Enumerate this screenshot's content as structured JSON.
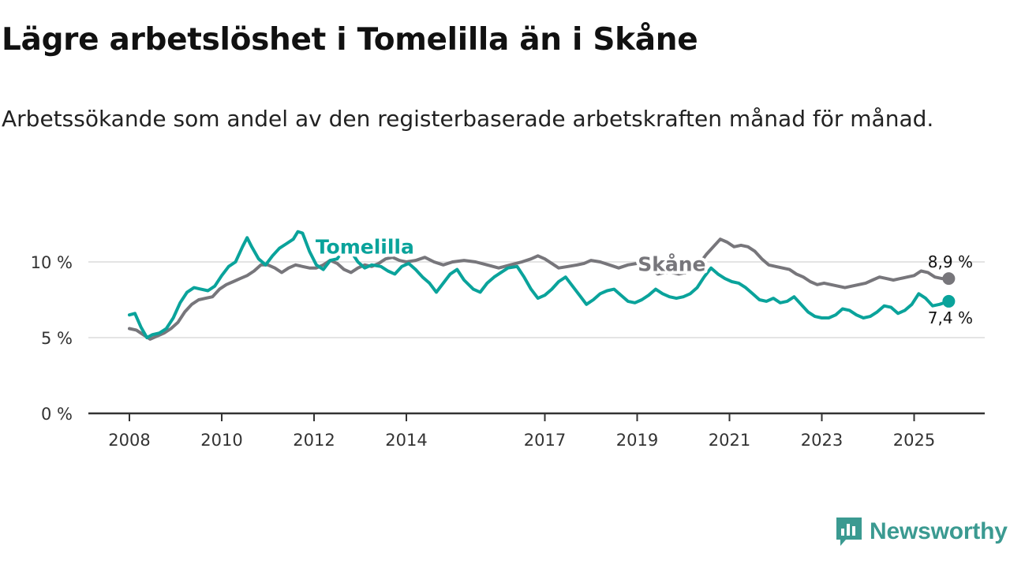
{
  "header": {
    "title": "Lägre arbetslöshet i Tomelilla än i Skåne",
    "subtitle": "Arbetssökande som andel av den registerbaserade arbetskraften månad för månad."
  },
  "brand": {
    "name": "Newsworthy",
    "color": "#3b9a91"
  },
  "chart_data": {
    "type": "line",
    "title": "Lägre arbetslöshet i Tomelilla än i Skåne",
    "subtitle": "Arbetssökande som andel av den registerbaserade arbetskraften månad för månad.",
    "xlabel": "",
    "ylabel": "",
    "xlim": [
      2008.0,
      2026.5
    ],
    "ylim": [
      0,
      12.5
    ],
    "grid": true,
    "x_ticks": [
      {
        "value": 2008,
        "label": "2008"
      },
      {
        "value": 2010,
        "label": "2010"
      },
      {
        "value": 2012,
        "label": "2012"
      },
      {
        "value": 2014,
        "label": "2014"
      },
      {
        "value": 2017,
        "label": "2017"
      },
      {
        "value": 2019,
        "label": "2019"
      },
      {
        "value": 2021,
        "label": "2021"
      },
      {
        "value": 2023,
        "label": "2023"
      },
      {
        "value": 2025,
        "label": "2025"
      }
    ],
    "y_ticks": [
      {
        "value": 0,
        "label": "0 %"
      },
      {
        "value": 5,
        "label": "5 %"
      },
      {
        "value": 10,
        "label": "10 %"
      }
    ],
    "series": [
      {
        "name": "Skåne",
        "label": "Skåne",
        "color": "#77767b",
        "label_position": [
          2019.75,
          9.4
        ],
        "end_label": "8,9 %",
        "points": [
          [
            2008.0,
            5.6
          ],
          [
            2008.15,
            5.5
          ],
          [
            2008.3,
            5.2
          ],
          [
            2008.45,
            4.9
          ],
          [
            2008.6,
            5.1
          ],
          [
            2008.75,
            5.3
          ],
          [
            2008.9,
            5.6
          ],
          [
            2009.05,
            6.0
          ],
          [
            2009.2,
            6.7
          ],
          [
            2009.35,
            7.2
          ],
          [
            2009.5,
            7.5
          ],
          [
            2009.65,
            7.6
          ],
          [
            2009.8,
            7.7
          ],
          [
            2009.95,
            8.2
          ],
          [
            2010.1,
            8.5
          ],
          [
            2010.25,
            8.7
          ],
          [
            2010.4,
            8.9
          ],
          [
            2010.55,
            9.1
          ],
          [
            2010.7,
            9.4
          ],
          [
            2010.85,
            9.8
          ],
          [
            2011.0,
            9.8
          ],
          [
            2011.15,
            9.6
          ],
          [
            2011.3,
            9.3
          ],
          [
            2011.45,
            9.6
          ],
          [
            2011.6,
            9.8
          ],
          [
            2011.75,
            9.7
          ],
          [
            2011.9,
            9.6
          ],
          [
            2012.05,
            9.6
          ],
          [
            2012.2,
            9.8
          ],
          [
            2012.35,
            10.1
          ],
          [
            2012.5,
            9.9
          ],
          [
            2012.65,
            9.5
          ],
          [
            2012.8,
            9.3
          ],
          [
            2012.95,
            9.6
          ],
          [
            2013.1,
            9.8
          ],
          [
            2013.25,
            9.7
          ],
          [
            2013.4,
            9.9
          ],
          [
            2013.55,
            10.2
          ],
          [
            2013.7,
            10.3
          ],
          [
            2013.85,
            10.1
          ],
          [
            2014.0,
            10.0
          ],
          [
            2014.2,
            10.1
          ],
          [
            2014.4,
            10.3
          ],
          [
            2014.6,
            10.0
          ],
          [
            2014.8,
            9.8
          ],
          [
            2015.0,
            10.0
          ],
          [
            2015.25,
            10.1
          ],
          [
            2015.5,
            10.0
          ],
          [
            2015.75,
            9.8
          ],
          [
            2016.0,
            9.6
          ],
          [
            2016.25,
            9.8
          ],
          [
            2016.5,
            10.0
          ],
          [
            2016.7,
            10.2
          ],
          [
            2016.85,
            10.4
          ],
          [
            2017.0,
            10.2
          ],
          [
            2017.15,
            9.9
          ],
          [
            2017.3,
            9.6
          ],
          [
            2017.5,
            9.7
          ],
          [
            2017.7,
            9.8
          ],
          [
            2017.85,
            9.9
          ],
          [
            2018.0,
            10.1
          ],
          [
            2018.2,
            10.0
          ],
          [
            2018.4,
            9.8
          ],
          [
            2018.6,
            9.6
          ],
          [
            2018.8,
            9.8
          ],
          [
            2019.0,
            9.9
          ],
          [
            2019.15,
            9.8
          ],
          [
            2019.3,
            9.5
          ],
          [
            2019.45,
            9.2
          ],
          [
            2019.6,
            9.3
          ],
          [
            2019.75,
            9.3
          ],
          [
            2019.9,
            9.2
          ],
          [
            2020.05,
            9.3
          ],
          [
            2020.2,
            9.5
          ],
          [
            2020.35,
            9.9
          ],
          [
            2020.5,
            10.5
          ],
          [
            2020.65,
            11.0
          ],
          [
            2020.8,
            11.5
          ],
          [
            2020.95,
            11.3
          ],
          [
            2021.1,
            11.0
          ],
          [
            2021.25,
            11.1
          ],
          [
            2021.4,
            11.0
          ],
          [
            2021.55,
            10.7
          ],
          [
            2021.7,
            10.2
          ],
          [
            2021.85,
            9.8
          ],
          [
            2022.0,
            9.7
          ],
          [
            2022.15,
            9.6
          ],
          [
            2022.3,
            9.5
          ],
          [
            2022.45,
            9.2
          ],
          [
            2022.6,
            9.0
          ],
          [
            2022.75,
            8.7
          ],
          [
            2022.9,
            8.5
          ],
          [
            2023.05,
            8.6
          ],
          [
            2023.2,
            8.5
          ],
          [
            2023.35,
            8.4
          ],
          [
            2023.5,
            8.3
          ],
          [
            2023.65,
            8.4
          ],
          [
            2023.8,
            8.5
          ],
          [
            2023.95,
            8.6
          ],
          [
            2024.1,
            8.8
          ],
          [
            2024.25,
            9.0
          ],
          [
            2024.4,
            8.9
          ],
          [
            2024.55,
            8.8
          ],
          [
            2024.7,
            8.9
          ],
          [
            2024.85,
            9.0
          ],
          [
            2025.0,
            9.1
          ],
          [
            2025.15,
            9.4
          ],
          [
            2025.3,
            9.3
          ],
          [
            2025.45,
            9.0
          ],
          [
            2025.6,
            8.9
          ],
          [
            2025.75,
            8.9
          ]
        ]
      },
      {
        "name": "Tomelilla",
        "label": "Tomelilla",
        "color": "#0aa39b",
        "label_position": [
          2013.1,
          10.55
        ],
        "end_label": "7,4 %",
        "points": [
          [
            2008.0,
            6.5
          ],
          [
            2008.12,
            6.6
          ],
          [
            2008.25,
            5.7
          ],
          [
            2008.38,
            5.0
          ],
          [
            2008.5,
            5.2
          ],
          [
            2008.65,
            5.3
          ],
          [
            2008.8,
            5.6
          ],
          [
            2008.95,
            6.3
          ],
          [
            2009.1,
            7.3
          ],
          [
            2009.25,
            8.0
          ],
          [
            2009.4,
            8.3
          ],
          [
            2009.55,
            8.2
          ],
          [
            2009.7,
            8.1
          ],
          [
            2009.85,
            8.4
          ],
          [
            2010.0,
            9.1
          ],
          [
            2010.15,
            9.7
          ],
          [
            2010.3,
            10.0
          ],
          [
            2010.45,
            11.0
          ],
          [
            2010.55,
            11.6
          ],
          [
            2010.65,
            11.0
          ],
          [
            2010.8,
            10.2
          ],
          [
            2010.95,
            9.8
          ],
          [
            2011.1,
            10.4
          ],
          [
            2011.25,
            10.9
          ],
          [
            2011.4,
            11.2
          ],
          [
            2011.55,
            11.5
          ],
          [
            2011.65,
            12.0
          ],
          [
            2011.75,
            11.9
          ],
          [
            2011.9,
            10.7
          ],
          [
            2012.05,
            9.8
          ],
          [
            2012.2,
            9.5
          ],
          [
            2012.35,
            10.1
          ],
          [
            2012.5,
            10.2
          ],
          [
            2012.65,
            10.9
          ],
          [
            2012.8,
            10.7
          ],
          [
            2012.95,
            10.0
          ],
          [
            2013.1,
            9.6
          ],
          [
            2013.25,
            9.8
          ],
          [
            2013.45,
            9.7
          ],
          [
            2013.6,
            9.4
          ],
          [
            2013.75,
            9.2
          ],
          [
            2013.9,
            9.7
          ],
          [
            2014.05,
            9.9
          ],
          [
            2014.2,
            9.5
          ],
          [
            2014.35,
            9.0
          ],
          [
            2014.5,
            8.6
          ],
          [
            2014.65,
            8.0
          ],
          [
            2014.8,
            8.6
          ],
          [
            2014.95,
            9.2
          ],
          [
            2015.1,
            9.5
          ],
          [
            2015.25,
            8.8
          ],
          [
            2015.45,
            8.2
          ],
          [
            2015.6,
            8.0
          ],
          [
            2015.75,
            8.6
          ],
          [
            2015.9,
            9.0
          ],
          [
            2016.05,
            9.3
          ],
          [
            2016.2,
            9.6
          ],
          [
            2016.4,
            9.7
          ],
          [
            2016.55,
            9.0
          ],
          [
            2016.7,
            8.2
          ],
          [
            2016.85,
            7.6
          ],
          [
            2017.0,
            7.8
          ],
          [
            2017.15,
            8.2
          ],
          [
            2017.3,
            8.7
          ],
          [
            2017.45,
            9.0
          ],
          [
            2017.6,
            8.4
          ],
          [
            2017.75,
            7.8
          ],
          [
            2017.9,
            7.2
          ],
          [
            2018.05,
            7.5
          ],
          [
            2018.2,
            7.9
          ],
          [
            2018.35,
            8.1
          ],
          [
            2018.5,
            8.2
          ],
          [
            2018.65,
            7.8
          ],
          [
            2018.8,
            7.4
          ],
          [
            2018.95,
            7.3
          ],
          [
            2019.1,
            7.5
          ],
          [
            2019.25,
            7.8
          ],
          [
            2019.4,
            8.2
          ],
          [
            2019.55,
            7.9
          ],
          [
            2019.7,
            7.7
          ],
          [
            2019.85,
            7.6
          ],
          [
            2020.0,
            7.7
          ],
          [
            2020.15,
            7.9
          ],
          [
            2020.3,
            8.3
          ],
          [
            2020.45,
            9.0
          ],
          [
            2020.6,
            9.6
          ],
          [
            2020.75,
            9.2
          ],
          [
            2020.9,
            8.9
          ],
          [
            2021.05,
            8.7
          ],
          [
            2021.2,
            8.6
          ],
          [
            2021.35,
            8.3
          ],
          [
            2021.5,
            7.9
          ],
          [
            2021.65,
            7.5
          ],
          [
            2021.8,
            7.4
          ],
          [
            2021.95,
            7.6
          ],
          [
            2022.1,
            7.3
          ],
          [
            2022.25,
            7.4
          ],
          [
            2022.4,
            7.7
          ],
          [
            2022.55,
            7.2
          ],
          [
            2022.7,
            6.7
          ],
          [
            2022.85,
            6.4
          ],
          [
            2023.0,
            6.3
          ],
          [
            2023.15,
            6.3
          ],
          [
            2023.3,
            6.5
          ],
          [
            2023.45,
            6.9
          ],
          [
            2023.6,
            6.8
          ],
          [
            2023.75,
            6.5
          ],
          [
            2023.9,
            6.3
          ],
          [
            2024.05,
            6.4
          ],
          [
            2024.2,
            6.7
          ],
          [
            2024.35,
            7.1
          ],
          [
            2024.5,
            7.0
          ],
          [
            2024.65,
            6.6
          ],
          [
            2024.8,
            6.8
          ],
          [
            2024.95,
            7.2
          ],
          [
            2025.1,
            7.9
          ],
          [
            2025.25,
            7.6
          ],
          [
            2025.4,
            7.1
          ],
          [
            2025.55,
            7.2
          ],
          [
            2025.75,
            7.4
          ]
        ]
      }
    ]
  }
}
